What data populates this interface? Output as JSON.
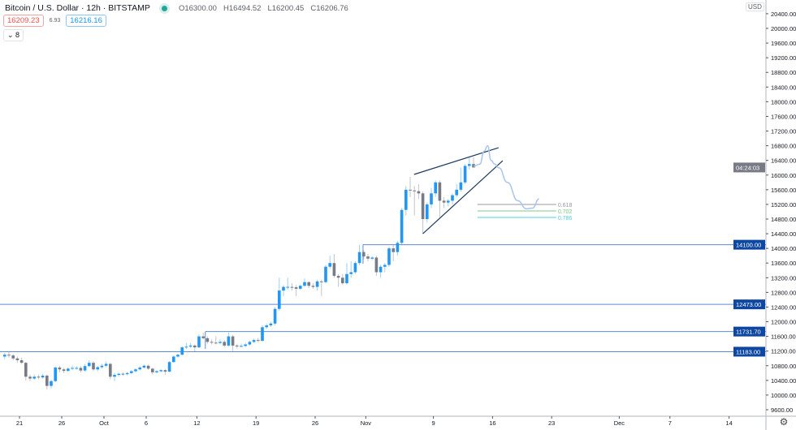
{
  "header": {
    "title": "Bitcoin / U.S. Dollar · 12h · BITSTAMP",
    "status_color": "#26a69a",
    "ohlc": {
      "open": "O16300.00",
      "high": "H16494.52",
      "low": "L16200.45",
      "close": "C16206.76"
    },
    "sell_price": "16209.23",
    "spread": "6.93",
    "buy_price": "16216.16",
    "indicators_toggle": "8"
  },
  "axis": {
    "currency": "USD",
    "countdown": "04:24:03",
    "settings_icon": "gear-icon"
  },
  "chart_data": {
    "type": "candlestick",
    "symbol": "BTCUSD",
    "interval": "12h",
    "ylim": [
      9400,
      20600
    ],
    "y_ticks": [
      "20400.00",
      "20000.00",
      "19600.00",
      "19200.00",
      "18800.00",
      "18400.00",
      "18000.00",
      "17600.00",
      "17200.00",
      "16800.00",
      "16400.00",
      "16000.00",
      "15600.00",
      "15200.00",
      "14800.00",
      "14400.00",
      "14000.00",
      "13600.00",
      "13200.00",
      "12800.00",
      "12400.00",
      "12000.00",
      "11600.00",
      "11200.00",
      "10800.00",
      "10400.00",
      "10000.00",
      "9600.00"
    ],
    "x_ticks": [
      {
        "label": "21",
        "date": "Sep 21"
      },
      {
        "label": "26",
        "date": "Sep 26"
      },
      {
        "label": "Oct",
        "date": "Oct 1"
      },
      {
        "label": "6",
        "date": "Oct 6"
      },
      {
        "label": "12",
        "date": "Oct 12"
      },
      {
        "label": "19",
        "date": "Oct 19"
      },
      {
        "label": "26",
        "date": "Oct 26"
      },
      {
        "label": "Nov",
        "date": "Nov 1"
      },
      {
        "label": "9",
        "date": "Nov 9"
      },
      {
        "label": "16",
        "date": "Nov 16"
      },
      {
        "label": "23",
        "date": "Nov 23"
      },
      {
        "label": "Dec",
        "date": "Dec 1"
      },
      {
        "label": "7",
        "date": "Dec 7"
      },
      {
        "label": "14",
        "date": "Dec 14"
      }
    ],
    "colors": {
      "up": "#2196f3",
      "down": "#787b86",
      "level": "#2962ff",
      "level_label_bg": "#0d47a1",
      "trendline": "#1c3a5e",
      "projection": "#a9c4ee"
    },
    "candles_columns": [
      "time",
      "open",
      "high",
      "low",
      "close"
    ],
    "candles": [
      [
        "Sep 19 00:00",
        11050,
        11150,
        10980,
        11100
      ],
      [
        "Sep 19 12:00",
        11100,
        11180,
        11020,
        11080
      ],
      [
        "Sep 20 00:00",
        11080,
        11120,
        10950,
        11000
      ],
      [
        "Sep 20 12:00",
        11000,
        11050,
        10880,
        10950
      ],
      [
        "Sep 21 00:00",
        10950,
        11020,
        10850,
        10880
      ],
      [
        "Sep 21 12:00",
        10880,
        10900,
        10400,
        10500
      ],
      [
        "Sep 22 00:00",
        10500,
        10560,
        10380,
        10450
      ],
      [
        "Sep 22 12:00",
        10450,
        10560,
        10420,
        10500
      ],
      [
        "Sep 23 00:00",
        10500,
        10560,
        10430,
        10480
      ],
      [
        "Sep 23 12:00",
        10480,
        10580,
        10450,
        10530
      ],
      [
        "Sep 24 00:00",
        10530,
        10560,
        10150,
        10250
      ],
      [
        "Sep 24 12:00",
        10250,
        10420,
        10180,
        10380
      ],
      [
        "Sep 25 00:00",
        10380,
        10780,
        10350,
        10750
      ],
      [
        "Sep 25 12:00",
        10750,
        10800,
        10620,
        10700
      ],
      [
        "Sep 26 00:00",
        10700,
        10740,
        10600,
        10660
      ],
      [
        "Sep 26 12:00",
        10660,
        10760,
        10630,
        10720
      ],
      [
        "Sep 27 00:00",
        10720,
        10800,
        10680,
        10740
      ],
      [
        "Sep 27 12:00",
        10740,
        10790,
        10690,
        10740
      ],
      [
        "Sep 28 00:00",
        10740,
        10790,
        10620,
        10670
      ],
      [
        "Sep 28 12:00",
        10670,
        10850,
        10640,
        10790
      ],
      [
        "Sep 29 00:00",
        10790,
        10950,
        10760,
        10880
      ],
      [
        "Sep 29 12:00",
        10880,
        10920,
        10660,
        10700
      ],
      [
        "Sep 30 00:00",
        10700,
        10800,
        10650,
        10760
      ],
      [
        "Sep 30 12:00",
        10760,
        10850,
        10720,
        10800
      ],
      [
        "Oct 1 00:00",
        10800,
        10920,
        10760,
        10850
      ],
      [
        "Oct 1 12:00",
        10850,
        10880,
        10430,
        10500
      ],
      [
        "Oct 2 00:00",
        10500,
        10600,
        10380,
        10550
      ],
      [
        "Oct 2 12:00",
        10550,
        10610,
        10500,
        10580
      ],
      [
        "Oct 3 00:00",
        10580,
        10620,
        10530,
        10570
      ],
      [
        "Oct 3 12:00",
        10570,
        10630,
        10540,
        10600
      ],
      [
        "Oct 4 00:00",
        10600,
        10680,
        10570,
        10650
      ],
      [
        "Oct 4 12:00",
        10650,
        10730,
        10620,
        10700
      ],
      [
        "Oct 5 00:00",
        10700,
        10790,
        10670,
        10750
      ],
      [
        "Oct 5 12:00",
        10750,
        10830,
        10720,
        10800
      ],
      [
        "Oct 6 00:00",
        10800,
        10830,
        10690,
        10720
      ],
      [
        "Oct 6 12:00",
        10720,
        10740,
        10560,
        10620
      ],
      [
        "Oct 7 00:00",
        10620,
        10680,
        10590,
        10650
      ],
      [
        "Oct 7 12:00",
        10650,
        10700,
        10620,
        10680
      ],
      [
        "Oct 8 00:00",
        10680,
        10700,
        10560,
        10640
      ],
      [
        "Oct 8 12:00",
        10640,
        10930,
        10620,
        10900
      ],
      [
        "Oct 9 00:00",
        10900,
        11080,
        10880,
        11050
      ],
      [
        "Oct 9 12:00",
        11050,
        11130,
        11020,
        11100
      ],
      [
        "Oct 10 00:00",
        11100,
        11330,
        11080,
        11300
      ],
      [
        "Oct 10 12:00",
        11300,
        11420,
        11260,
        11320
      ],
      [
        "Oct 11 00:00",
        11320,
        11420,
        11290,
        11350
      ],
      [
        "Oct 11 12:00",
        11350,
        11380,
        11180,
        11300
      ],
      [
        "Oct 12 00:00",
        11300,
        11650,
        11280,
        11600
      ],
      [
        "Oct 12 12:00",
        11600,
        11700,
        11520,
        11550
      ],
      [
        "Oct 13 00:00",
        11550,
        11600,
        11400,
        11450
      ],
      [
        "Oct 13 12:00",
        11450,
        11520,
        11380,
        11430
      ],
      [
        "Oct 14 00:00",
        11430,
        11600,
        11380,
        11420
      ],
      [
        "Oct 14 12:00",
        11420,
        11520,
        11380,
        11450
      ],
      [
        "Oct 15 00:00",
        11450,
        11500,
        11300,
        11350
      ],
      [
        "Oct 15 12:00",
        11350,
        11700,
        11320,
        11600
      ],
      [
        "Oct 16 00:00",
        11600,
        11640,
        11200,
        11350
      ],
      [
        "Oct 16 12:00",
        11350,
        11400,
        11270,
        11330
      ],
      [
        "Oct 17 00:00",
        11330,
        11400,
        11300,
        11340
      ],
      [
        "Oct 17 12:00",
        11340,
        11420,
        11310,
        11380
      ],
      [
        "Oct 18 00:00",
        11380,
        11480,
        11350,
        11450
      ],
      [
        "Oct 18 12:00",
        11450,
        11540,
        11420,
        11500
      ],
      [
        "Oct 19 00:00",
        11500,
        11560,
        11440,
        11480
      ],
      [
        "Oct 19 12:00",
        11480,
        11900,
        11460,
        11850
      ],
      [
        "Oct 20 00:00",
        11850,
        11950,
        11800,
        11900
      ],
      [
        "Oct 20 12:00",
        11900,
        12000,
        11850,
        11950
      ],
      [
        "Oct 21 00:00",
        11950,
        12400,
        11900,
        12350
      ],
      [
        "Oct 21 12:00",
        12350,
        13200,
        12300,
        12850
      ],
      [
        "Oct 22 00:00",
        12850,
        13000,
        12700,
        12950
      ],
      [
        "Oct 22 12:00",
        12950,
        13200,
        12880,
        12950
      ],
      [
        "Oct 23 00:00",
        12950,
        13050,
        12850,
        12940
      ],
      [
        "Oct 23 12:00",
        12940,
        13000,
        12700,
        12900
      ],
      [
        "Oct 24 00:00",
        12900,
        13020,
        12870,
        12980
      ],
      [
        "Oct 24 12:00",
        12980,
        13180,
        12950,
        13080
      ],
      [
        "Oct 25 00:00",
        13080,
        13100,
        12920,
        12980
      ],
      [
        "Oct 25 12:00",
        12980,
        13050,
        12900,
        12950
      ],
      [
        "Oct 26 00:00",
        12950,
        13150,
        12850,
        13100
      ],
      [
        "Oct 26 12:00",
        13100,
        13150,
        12700,
        13080
      ],
      [
        "Oct 27 00:00",
        13080,
        13550,
        13050,
        13500
      ],
      [
        "Oct 27 12:00",
        13500,
        13800,
        13450,
        13600
      ],
      [
        "Oct 28 00:00",
        13600,
        13850,
        13200,
        13250
      ],
      [
        "Oct 28 12:00",
        13250,
        13300,
        12950,
        13200
      ],
      [
        "Oct 29 00:00",
        13200,
        13300,
        13000,
        13050
      ],
      [
        "Oct 29 12:00",
        13050,
        13600,
        13020,
        13300
      ],
      [
        "Oct 30 00:00",
        13300,
        13650,
        13200,
        13350
      ],
      [
        "Oct 30 12:00",
        13350,
        13650,
        13300,
        13600
      ],
      [
        "Oct 31 00:00",
        13600,
        14100,
        13550,
        13900
      ],
      [
        "Oct 31 12:00",
        13900,
        13950,
        13700,
        13780
      ],
      [
        "Nov 1 00:00",
        13780,
        13850,
        13650,
        13720
      ],
      [
        "Nov 1 12:00",
        13720,
        13790,
        13680,
        13750
      ],
      [
        "Nov 2 00:00",
        13750,
        13800,
        13250,
        13350
      ],
      [
        "Nov 2 12:00",
        13350,
        13550,
        13200,
        13500
      ],
      [
        "Nov 3 00:00",
        13500,
        13600,
        13350,
        13550
      ],
      [
        "Nov 3 12:00",
        13550,
        14050,
        13500,
        14000
      ],
      [
        "Nov 4 00:00",
        14000,
        14100,
        13650,
        13900
      ],
      [
        "Nov 4 12:00",
        13900,
        14200,
        13800,
        14150
      ],
      [
        "Nov 5 00:00",
        14150,
        15100,
        14100,
        15050
      ],
      [
        "Nov 5 12:00",
        15050,
        15700,
        14900,
        15600
      ],
      [
        "Nov 6 00:00",
        15600,
        15950,
        15400,
        15580
      ],
      [
        "Nov 6 12:00",
        15580,
        15700,
        14900,
        15560
      ],
      [
        "Nov 7 00:00",
        15560,
        15750,
        15350,
        15500
      ],
      [
        "Nov 7 12:00",
        15500,
        15550,
        14400,
        14800
      ],
      [
        "Nov 8 00:00",
        14800,
        15250,
        14700,
        15200
      ],
      [
        "Nov 8 12:00",
        15200,
        15650,
        15100,
        15500
      ],
      [
        "Nov 9 00:00",
        15500,
        15850,
        15400,
        15800
      ],
      [
        "Nov 9 12:00",
        15800,
        15850,
        14850,
        15300
      ],
      [
        "Nov 10 00:00",
        15300,
        15400,
        15100,
        15250
      ],
      [
        "Nov 10 12:00",
        15250,
        15350,
        15150,
        15300
      ],
      [
        "Nov 11 00:00",
        15300,
        15500,
        15200,
        15450
      ],
      [
        "Nov 11 12:00",
        15450,
        15750,
        15400,
        15600
      ],
      [
        "Nov 12 00:00",
        15600,
        16200,
        15550,
        15800
      ],
      [
        "Nov 12 12:00",
        15800,
        16300,
        15750,
        16250
      ],
      [
        "Nov 13 00:00",
        16250,
        16480,
        16150,
        16300
      ],
      [
        "Nov 13 12:00",
        16300,
        16494.52,
        16200.45,
        16206.76
      ]
    ],
    "horizontal_levels": [
      {
        "price": 14100.0,
        "label": "14100.00",
        "from": "Oct 31 10:00",
        "stem_to": 13580
      },
      {
        "price": 12473.0,
        "label": "12473.00"
      },
      {
        "price": 11731.7,
        "label": "11731.70",
        "from": "Oct 12 18:00",
        "stem_to": 11260
      },
      {
        "price": 11183.0,
        "label": "11183.00"
      }
    ],
    "wedge": [
      {
        "from": [
          "Nov 6 11:00",
          16017
        ],
        "to": [
          "Nov 16 11:00",
          16747
        ]
      },
      {
        "from": [
          "Nov 7 12:00",
          14400
        ],
        "to": [
          "Nov 16 23:00",
          16393
        ]
      }
    ],
    "fib_levels": [
      {
        "ratio": "0.618",
        "price": 15198,
        "color": "#9598a1"
      },
      {
        "ratio": "0.702",
        "price": 15020,
        "color": "#81c784"
      },
      {
        "ratio": "0.786",
        "price": 14843,
        "color": "#4dd0e1"
      }
    ],
    "fib_range": [
      "Nov 13 23:00",
      "Nov 23 07:00"
    ],
    "projection_path": [
      [
        "Nov 13 12:00",
        16240
      ],
      [
        "Nov 14 06:00",
        16300
      ],
      [
        "Nov 14 18:00",
        16650
      ],
      [
        "Nov 15 04:00",
        16800
      ],
      [
        "Nov 15 14:00",
        16400
      ],
      [
        "Nov 16 00:00",
        16300
      ],
      [
        "Nov 16 12:00",
        16200
      ],
      [
        "Nov 17 12:00",
        15800
      ],
      [
        "Nov 18 18:00",
        15300
      ],
      [
        "Nov 19 18:00",
        15080
      ],
      [
        "Nov 20 12:00",
        15100
      ],
      [
        "Nov 21 06:00",
        15350
      ]
    ]
  }
}
